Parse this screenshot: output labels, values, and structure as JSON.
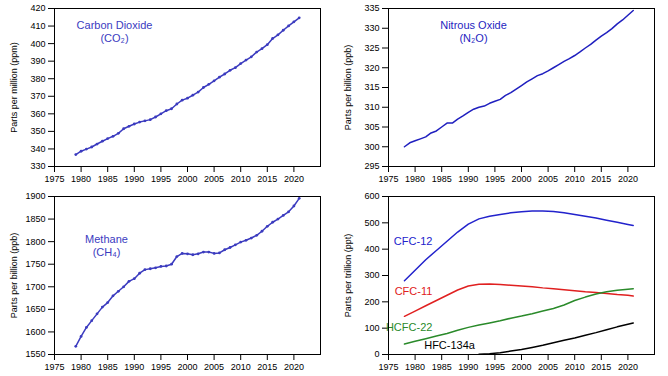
{
  "chart_data": [
    {
      "type": "line",
      "title": "Carbon Dioxide\n(CO₂)",
      "ylabel": "Parts per million (ppm)",
      "x": [
        1979,
        1980,
        1981,
        1982,
        1983,
        1984,
        1985,
        1986,
        1987,
        1988,
        1989,
        1990,
        1991,
        1992,
        1993,
        1994,
        1995,
        1996,
        1997,
        1998,
        1999,
        2000,
        2001,
        2002,
        2003,
        2004,
        2005,
        2006,
        2007,
        2008,
        2009,
        2010,
        2011,
        2012,
        2013,
        2014,
        2015,
        2016,
        2017,
        2018,
        2019,
        2020,
        2021
      ],
      "series": [
        {
          "color": "#3b3bbf",
          "marker": "dot",
          "values": [
            336.8,
            338.7,
            339.9,
            341.1,
            342.8,
            344.4,
            345.9,
            347.2,
            348.9,
            351.5,
            352.9,
            354.2,
            355.3,
            356.0,
            356.7,
            358.2,
            360.0,
            361.8,
            362.9,
            365.6,
            367.8,
            368.9,
            370.6,
            372.4,
            375.0,
            376.8,
            378.8,
            380.9,
            382.7,
            384.8,
            386.3,
            388.6,
            390.6,
            392.5,
            395.2,
            397.1,
            399.4,
            402.9,
            405.0,
            407.6,
            410.1,
            412.4,
            414.7
          ]
        }
      ],
      "xlim": [
        1975,
        2025
      ],
      "xticks": [
        1975,
        1980,
        1985,
        1990,
        1995,
        2000,
        2005,
        2010,
        2015,
        2020
      ],
      "ylim": [
        330,
        420
      ],
      "yticks": [
        330,
        340,
        350,
        360,
        370,
        380,
        390,
        400,
        410,
        420
      ],
      "grid": false
    },
    {
      "type": "line",
      "title": "Nitrous Oxide\n(N₂O)",
      "ylabel": "Parts per billion (ppb)",
      "x": [
        1978,
        1979,
        1980,
        1981,
        1982,
        1983,
        1984,
        1985,
        1986,
        1987,
        1988,
        1989,
        1990,
        1991,
        1992,
        1993,
        1994,
        1995,
        1996,
        1997,
        1998,
        1999,
        2000,
        2001,
        2002,
        2003,
        2004,
        2005,
        2006,
        2007,
        2008,
        2009,
        2010,
        2011,
        2012,
        2013,
        2014,
        2015,
        2016,
        2017,
        2018,
        2019,
        2020,
        2021
      ],
      "series": [
        {
          "color": "#1f1fbf",
          "values": [
            300,
            301,
            301.5,
            302,
            302.5,
            303.5,
            304,
            305,
            306,
            306,
            307,
            307.8,
            308.7,
            309.5,
            310,
            310.3,
            311,
            311.5,
            312,
            313,
            313.7,
            314.6,
            315.5,
            316.4,
            317.2,
            318,
            318.5,
            319.2,
            320,
            320.8,
            321.6,
            322.3,
            323.1,
            324,
            325,
            325.9,
            327,
            328,
            328.9,
            329.9,
            331.1,
            332.1,
            333.3,
            334.5
          ]
        }
      ],
      "xlim": [
        1975,
        2025
      ],
      "xticks": [
        1975,
        1980,
        1985,
        1990,
        1995,
        2000,
        2005,
        2010,
        2015,
        2020
      ],
      "ylim": [
        295,
        335
      ],
      "yticks": [
        295,
        300,
        305,
        310,
        315,
        320,
        325,
        330,
        335
      ],
      "grid": false
    },
    {
      "type": "line",
      "title": "Methane\n(CH₄)",
      "ylabel": "Parts per billion (ppb)",
      "x": [
        1979,
        1980,
        1981,
        1982,
        1983,
        1984,
        1985,
        1986,
        1987,
        1988,
        1989,
        1990,
        1991,
        1992,
        1993,
        1994,
        1995,
        1996,
        1997,
        1998,
        1999,
        2000,
        2001,
        2002,
        2003,
        2004,
        2005,
        2006,
        2007,
        2008,
        2009,
        2010,
        2011,
        2012,
        2013,
        2014,
        2015,
        2016,
        2017,
        2018,
        2019,
        2020,
        2021
      ],
      "series": [
        {
          "color": "#3b3bbf",
          "marker": "dot",
          "values": [
            1568,
            1590,
            1610,
            1625,
            1640,
            1655,
            1665,
            1680,
            1690,
            1700,
            1712,
            1718,
            1730,
            1738,
            1740,
            1742,
            1745,
            1746,
            1750,
            1767,
            1774,
            1773,
            1771,
            1773,
            1777,
            1777,
            1774,
            1775,
            1782,
            1787,
            1793,
            1799,
            1803,
            1808,
            1814,
            1823,
            1834,
            1843,
            1850,
            1858,
            1866,
            1879,
            1896
          ]
        }
      ],
      "xlim": [
        1975,
        2025
      ],
      "xticks": [
        1975,
        1980,
        1985,
        1990,
        1995,
        2000,
        2005,
        2010,
        2015,
        2020
      ],
      "ylim": [
        1550,
        1900
      ],
      "yticks": [
        1550,
        1600,
        1650,
        1700,
        1750,
        1800,
        1850,
        1900
      ],
      "grid": false
    },
    {
      "type": "line",
      "ylabel": "Parts per trillion (ppt)",
      "x": [
        1978,
        1980,
        1982,
        1984,
        1986,
        1988,
        1990,
        1992,
        1994,
        1996,
        1998,
        2000,
        2002,
        2004,
        2006,
        2008,
        2010,
        2012,
        2014,
        2016,
        2018,
        2020,
        2021
      ],
      "series": [
        {
          "name": "CFC-12",
          "color": "#2222cc",
          "values": [
            280,
            320,
            360,
            395,
            430,
            465,
            495,
            515,
            525,
            532,
            538,
            542,
            545,
            545,
            543,
            538,
            532,
            525,
            518,
            510,
            502,
            494,
            490
          ]
        },
        {
          "name": "CFC-11",
          "color": "#e02020",
          "values": [
            145,
            165,
            185,
            205,
            225,
            245,
            260,
            267,
            268,
            266,
            263,
            260,
            257,
            253,
            250,
            246,
            242,
            238,
            235,
            232,
            228,
            225,
            222
          ]
        },
        {
          "name": "HCFC-22",
          "color": "#2a8a2a",
          "values": [
            40,
            50,
            60,
            70,
            80,
            92,
            103,
            112,
            120,
            128,
            138,
            146,
            155,
            165,
            175,
            188,
            205,
            218,
            230,
            238,
            244,
            248,
            250
          ]
        },
        {
          "name": "HFC-134a",
          "color": "#000000",
          "values": [
            null,
            null,
            null,
            null,
            null,
            null,
            null,
            1,
            3,
            7,
            13,
            19,
            27,
            35,
            45,
            54,
            63,
            73,
            83,
            94,
            105,
            115,
            120
          ]
        }
      ],
      "xlim": [
        1975,
        2025
      ],
      "xticks": [
        1975,
        1980,
        1985,
        1990,
        1995,
        2000,
        2005,
        2010,
        2015,
        2020
      ],
      "ylim": [
        0,
        600
      ],
      "yticks": [
        0,
        100,
        200,
        300,
        400,
        500,
        600
      ],
      "grid": false
    }
  ]
}
